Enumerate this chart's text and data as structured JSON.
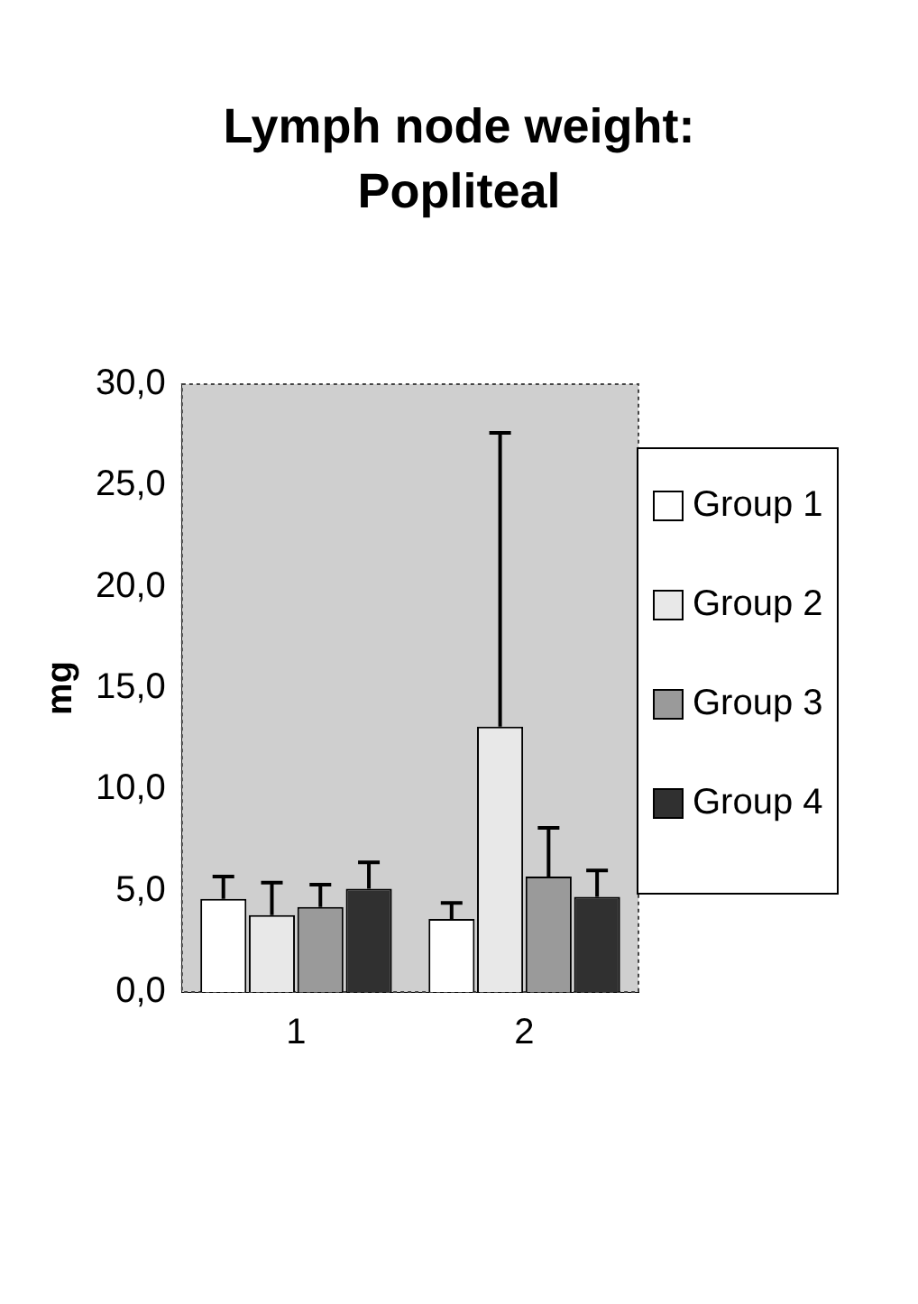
{
  "chart_data": {
    "type": "bar",
    "title": "Lymph node weight:\nPopliteal",
    "ylabel": "mg",
    "categories": [
      "1",
      "2"
    ],
    "series": [
      {
        "name": "Group 1",
        "color": "#ffffff",
        "values": [
          4.6,
          3.6
        ],
        "errors": [
          [
            4.6,
            5.7
          ],
          [
            3.6,
            4.4
          ]
        ]
      },
      {
        "name": "Group 2",
        "color": "#e8e8e8",
        "values": [
          3.8,
          13.1
        ],
        "errors": [
          [
            3.8,
            5.4
          ],
          [
            13.1,
            27.6
          ]
        ]
      },
      {
        "name": "Group 3",
        "color": "#9a9a9a",
        "values": [
          4.2,
          5.7
        ],
        "errors": [
          [
            4.2,
            5.3
          ],
          [
            5.7,
            8.1
          ]
        ]
      },
      {
        "name": "Group 4",
        "color": "#303030",
        "values": [
          5.1,
          4.7
        ],
        "errors": [
          [
            5.1,
            6.4
          ],
          [
            4.7,
            6.0
          ]
        ]
      }
    ],
    "ylim": [
      0,
      30
    ],
    "yticks": [
      {
        "value": 0,
        "label": "0,0"
      },
      {
        "value": 5,
        "label": "5,0"
      },
      {
        "value": 10,
        "label": "10,0"
      },
      {
        "value": 15,
        "label": "15,0"
      },
      {
        "value": 20,
        "label": "20,0"
      },
      {
        "value": 25,
        "label": "25,0"
      },
      {
        "value": 30,
        "label": "30,0"
      }
    ],
    "grid": false,
    "legend": "right"
  }
}
